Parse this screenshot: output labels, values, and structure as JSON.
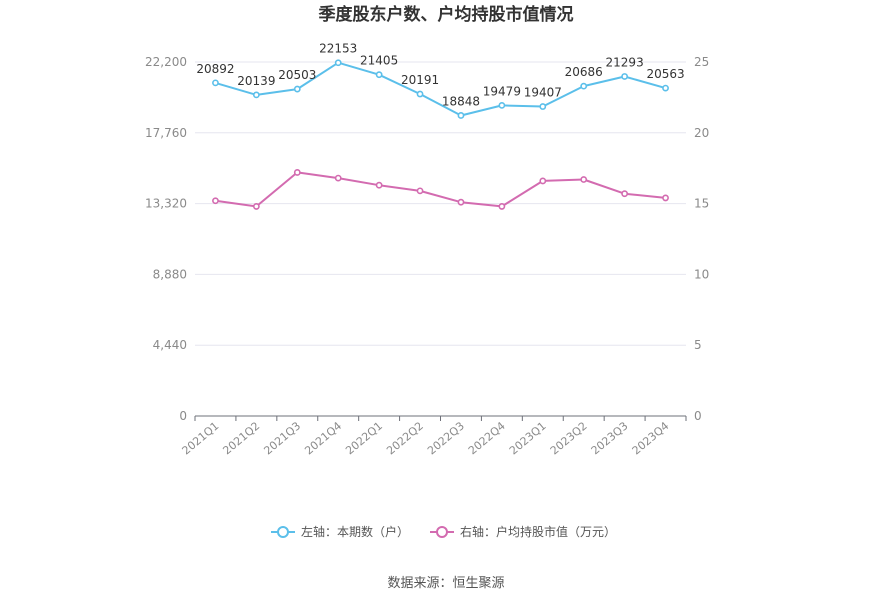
{
  "chart_data": {
    "type": "line",
    "title": "季度股东户数、户均持股市值情况",
    "categories": [
      "2021Q1",
      "2021Q2",
      "2021Q3",
      "2021Q4",
      "2022Q1",
      "2022Q2",
      "2022Q3",
      "2022Q4",
      "2023Q1",
      "2023Q2",
      "2023Q3",
      "2023Q4"
    ],
    "series": [
      {
        "name": "左轴：本期数（户）",
        "axis": "left",
        "color": "#5bbfea",
        "values": [
          20892,
          20139,
          20503,
          22153,
          21405,
          20191,
          18848,
          19479,
          19407,
          20686,
          21293,
          20563
        ],
        "labels": [
          "20892",
          "20139",
          "20503",
          "22153",
          "21405",
          "20191",
          "18848",
          "19479",
          "19407",
          "20686",
          "21293",
          "20563"
        ]
      },
      {
        "name": "右轴：户均持股市值（万元）",
        "axis": "right",
        "color": "#d36bb0",
        "values": [
          15.2,
          14.8,
          17.2,
          16.8,
          16.3,
          15.9,
          15.1,
          14.8,
          16.6,
          16.7,
          15.7,
          15.4
        ]
      }
    ],
    "left_axis": {
      "min": 0,
      "max": 22200,
      "ticks": [
        0,
        4440,
        8880,
        13320,
        17760,
        22200
      ],
      "tick_labels": [
        "0",
        "4,440",
        "8,880",
        "13,320",
        "17,760",
        "22,200"
      ]
    },
    "right_axis": {
      "min": 0,
      "max": 25,
      "ticks": [
        0,
        5,
        10,
        15,
        20,
        25
      ],
      "tick_labels": [
        "0",
        "5",
        "10",
        "15",
        "20",
        "25"
      ]
    },
    "grid": true,
    "legend_position": "bottom"
  },
  "footer": {
    "source": "数据来源：恒生聚源"
  }
}
